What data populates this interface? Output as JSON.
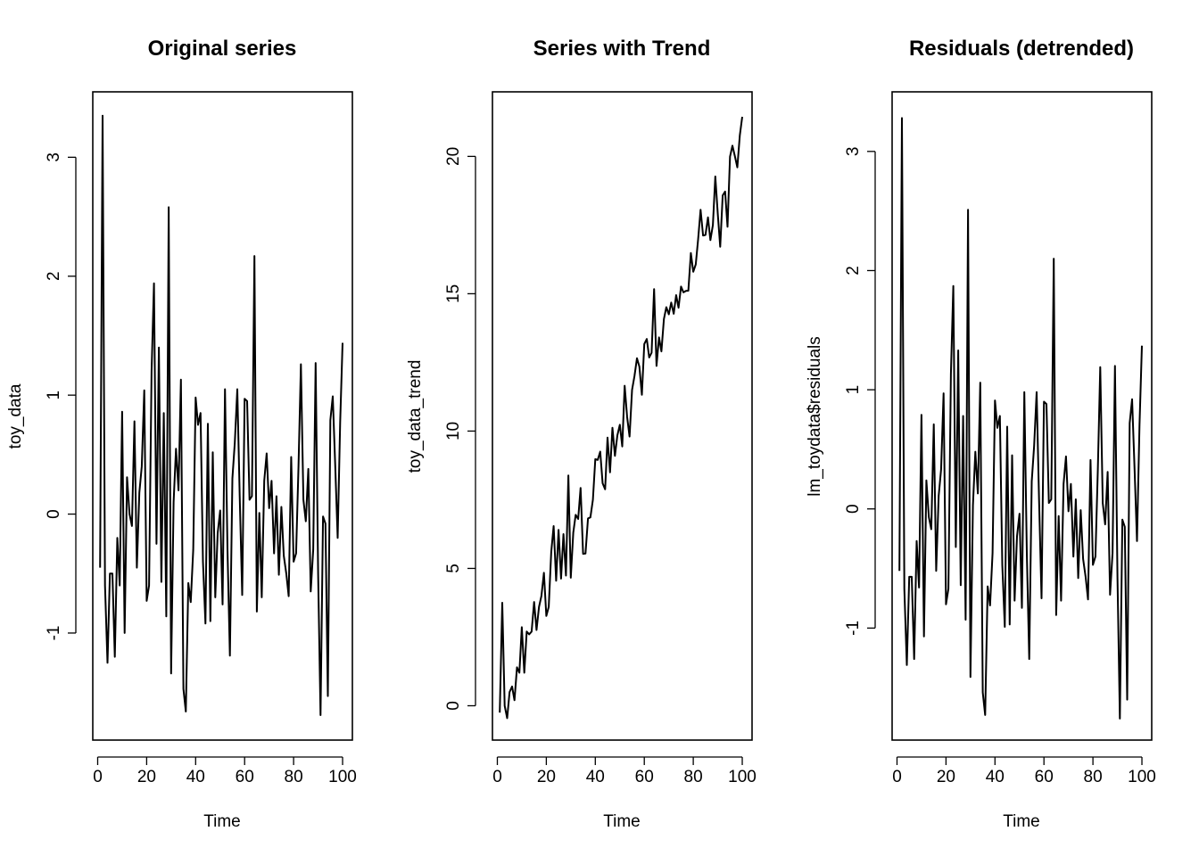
{
  "chart_data": [
    {
      "type": "line",
      "title": "Original series",
      "xlabel": "Time",
      "ylabel": "toy_data",
      "xlim": [
        -2,
        104
      ],
      "ylim": [
        -1.9,
        3.55
      ],
      "x_ticks": [
        0,
        20,
        40,
        60,
        80,
        100
      ],
      "y_ticks": [
        -1,
        0,
        1,
        2,
        3
      ],
      "grid": false,
      "series": [
        {
          "x": [
            1,
            2,
            3,
            4,
            5,
            6,
            7,
            8,
            9,
            10,
            11,
            12,
            13,
            14,
            15,
            16,
            17,
            18,
            19,
            20,
            21,
            22,
            23,
            24,
            25,
            26,
            27,
            28,
            29,
            30,
            31,
            32,
            33,
            34,
            35,
            36,
            37,
            38,
            39,
            40,
            41,
            42,
            43,
            44,
            45,
            46,
            47,
            48,
            49,
            50,
            51,
            52,
            53,
            54,
            55,
            56,
            57,
            58,
            59,
            60,
            61,
            62,
            63,
            64,
            65,
            66,
            67,
            68,
            69,
            70,
            71,
            72,
            73,
            74,
            75,
            76,
            77,
            78,
            79,
            80,
            81,
            82,
            83,
            84,
            85,
            86,
            87,
            88,
            89,
            90,
            91,
            92,
            93,
            94,
            95,
            96,
            97,
            98,
            99,
            100
          ],
          "values": [
            -0.45,
            3.35,
            -0.6,
            -1.25,
            -0.5,
            -0.5,
            -1.2,
            -0.2,
            -0.6,
            0.86,
            -1.0,
            0.31,
            0.0,
            -0.1,
            0.78,
            -0.45,
            0.18,
            0.4,
            1.04,
            -0.73,
            -0.6,
            1.2,
            1.94,
            -0.25,
            1.4,
            -0.57,
            0.85,
            -0.86,
            2.58,
            -1.34,
            0.1,
            0.55,
            0.2,
            1.13,
            -1.47,
            -1.66,
            -0.58,
            -0.74,
            -0.3,
            0.98,
            0.75,
            0.85,
            -0.4,
            -0.92,
            0.76,
            -0.9,
            0.52,
            -0.7,
            -0.16,
            0.03,
            -0.76,
            1.05,
            -0.3,
            -1.19,
            0.3,
            0.6,
            1.05,
            0.15,
            -0.68,
            0.97,
            0.95,
            0.12,
            0.15,
            2.17,
            -0.82,
            0.01,
            -0.7,
            0.28,
            0.51,
            0.05,
            0.28,
            -0.33,
            0.15,
            -0.51,
            0.06,
            -0.35,
            -0.5,
            -0.69,
            0.48,
            -0.4,
            -0.33,
            0.4,
            1.26,
            0.12,
            -0.06,
            0.38,
            -0.65,
            -0.3,
            1.27,
            -0.5,
            -1.69,
            -0.02,
            -0.08,
            -1.53,
            0.79,
            0.99,
            0.4,
            -0.2,
            0.77,
            1.44
          ]
        }
      ]
    },
    {
      "type": "line",
      "title": "Series with Trend",
      "xlabel": "Time",
      "ylabel": "toy_data_trend",
      "xlim": [
        -2,
        104
      ],
      "ylim": [
        -1.25,
        22.35
      ],
      "x_ticks": [
        0,
        20,
        40,
        60,
        80,
        100
      ],
      "y_ticks": [
        0,
        5,
        10,
        15,
        20
      ],
      "grid": false,
      "series": [
        {
          "x": [
            1,
            2,
            3,
            4,
            5,
            6,
            7,
            8,
            9,
            10,
            11,
            12,
            13,
            14,
            15,
            16,
            17,
            18,
            19,
            20,
            21,
            22,
            23,
            24,
            25,
            26,
            27,
            28,
            29,
            30,
            31,
            32,
            33,
            34,
            35,
            36,
            37,
            38,
            39,
            40,
            41,
            42,
            43,
            44,
            45,
            46,
            47,
            48,
            49,
            50,
            51,
            52,
            53,
            54,
            55,
            56,
            57,
            58,
            59,
            60,
            61,
            62,
            63,
            64,
            65,
            66,
            67,
            68,
            69,
            70,
            71,
            72,
            73,
            74,
            75,
            76,
            77,
            78,
            79,
            80,
            81,
            82,
            83,
            84,
            85,
            86,
            87,
            88,
            89,
            90,
            91,
            92,
            93,
            94,
            95,
            96,
            97,
            98,
            99,
            100
          ],
          "values": [
            -0.25,
            3.75,
            0.0,
            -0.45,
            0.5,
            0.7,
            0.2,
            1.4,
            1.2,
            2.86,
            1.2,
            2.7,
            2.6,
            2.7,
            3.78,
            2.76,
            3.6,
            4.0,
            4.84,
            3.27,
            3.6,
            5.6,
            6.54,
            4.55,
            6.4,
            4.63,
            6.25,
            4.74,
            8.38,
            4.66,
            6.3,
            6.95,
            6.8,
            7.93,
            5.53,
            5.54,
            6.82,
            6.86,
            7.5,
            8.98,
            8.95,
            9.25,
            8.1,
            7.88,
            9.76,
            8.5,
            10.12,
            9.1,
            9.84,
            10.23,
            9.44,
            11.65,
            10.5,
            9.8,
            11.5,
            12.0,
            12.65,
            12.35,
            11.32,
            13.17,
            13.35,
            12.68,
            12.85,
            15.17,
            12.37,
            13.41,
            12.9,
            14.08,
            14.51,
            14.25,
            14.68,
            14.27,
            14.95,
            14.49,
            15.26,
            15.05,
            15.1,
            15.11,
            16.48,
            15.8,
            16.07,
            17.0,
            18.06,
            17.12,
            17.14,
            17.78,
            16.95,
            17.5,
            19.27,
            17.9,
            16.71,
            18.58,
            18.72,
            17.44,
            19.99,
            20.39,
            20.0,
            19.6,
            20.77,
            21.44
          ]
        }
      ]
    },
    {
      "type": "line",
      "title": "Residuals (detrended)",
      "xlabel": "Time",
      "ylabel": "lm_toydata$residuals",
      "xlim": [
        -2,
        104
      ],
      "ylim": [
        -1.94,
        3.5
      ],
      "x_ticks": [
        0,
        20,
        40,
        60,
        80,
        100
      ],
      "y_ticks": [
        -1,
        0,
        1,
        2,
        3
      ],
      "grid": false,
      "series": [
        {
          "x": [
            1,
            2,
            3,
            4,
            5,
            6,
            7,
            8,
            9,
            10,
            11,
            12,
            13,
            14,
            15,
            16,
            17,
            18,
            19,
            20,
            21,
            22,
            23,
            24,
            25,
            26,
            27,
            28,
            29,
            30,
            31,
            32,
            33,
            34,
            35,
            36,
            37,
            38,
            39,
            40,
            41,
            42,
            43,
            44,
            45,
            46,
            47,
            48,
            49,
            50,
            51,
            52,
            53,
            54,
            55,
            56,
            57,
            58,
            59,
            60,
            61,
            62,
            63,
            64,
            65,
            66,
            67,
            68,
            69,
            70,
            71,
            72,
            73,
            74,
            75,
            76,
            77,
            78,
            79,
            80,
            81,
            82,
            83,
            84,
            85,
            86,
            87,
            88,
            89,
            90,
            91,
            92,
            93,
            94,
            95,
            96,
            97,
            98,
            99,
            100
          ],
          "values": [
            -0.52,
            3.28,
            -0.67,
            -1.31,
            -0.57,
            -0.57,
            -1.26,
            -0.27,
            -0.66,
            0.79,
            -1.07,
            0.24,
            -0.07,
            -0.17,
            0.71,
            -0.52,
            0.11,
            0.33,
            0.97,
            -0.8,
            -0.67,
            1.13,
            1.87,
            -0.32,
            1.33,
            -0.64,
            0.78,
            -0.93,
            2.51,
            -1.41,
            0.03,
            0.48,
            0.13,
            1.06,
            -1.54,
            -1.73,
            -0.65,
            -0.81,
            -0.37,
            0.91,
            0.68,
            0.78,
            -0.47,
            -0.99,
            0.69,
            -0.97,
            0.45,
            -0.77,
            -0.23,
            -0.04,
            -0.83,
            0.98,
            -0.37,
            -1.26,
            0.23,
            0.53,
            0.98,
            0.08,
            -0.75,
            0.9,
            0.88,
            0.05,
            0.08,
            2.1,
            -0.89,
            -0.06,
            -0.77,
            0.21,
            0.44,
            -0.02,
            0.21,
            -0.4,
            0.08,
            -0.58,
            -0.01,
            -0.42,
            -0.57,
            -0.76,
            0.41,
            -0.47,
            -0.4,
            0.33,
            1.19,
            0.05,
            -0.13,
            0.31,
            -0.72,
            -0.37,
            1.2,
            -0.57,
            -1.76,
            -0.09,
            -0.15,
            -1.6,
            0.72,
            0.92,
            0.33,
            -0.27,
            0.7,
            1.37
          ]
        }
      ]
    }
  ]
}
